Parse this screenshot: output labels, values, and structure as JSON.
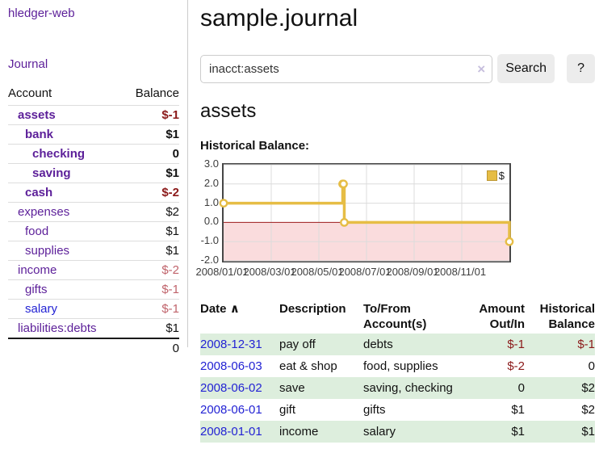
{
  "app": {
    "title": "hledger-web"
  },
  "colors": {
    "link_purple": "#5c1f99",
    "link_blue": "#2323d4",
    "negative_red": "#8b1919",
    "rose_red": "#c0636b",
    "row_stripe_green": "#ddeedd",
    "chart_line_yellow": "#e6bd45",
    "chart_negative_pink": "#fadcdd",
    "chart_zero_line": "#9c1b1b",
    "button_gray": "#ececec"
  },
  "sidebar": {
    "journal_label": "Journal",
    "accounts_table": {
      "account_header": "Account",
      "balance_header": "Balance",
      "rows": [
        {
          "name": "assets",
          "depth": 1,
          "bold": true,
          "link_color": "purple",
          "balance": "$-1",
          "balance_class": "neg"
        },
        {
          "name": "bank",
          "depth": 2,
          "bold": true,
          "link_color": "purple",
          "balance": "$1",
          "balance_class": "pos"
        },
        {
          "name": "checking",
          "depth": 3,
          "bold": true,
          "link_color": "purple",
          "balance": "0",
          "balance_class": "pos"
        },
        {
          "name": "saving",
          "depth": 3,
          "bold": true,
          "link_color": "purple",
          "balance": "$1",
          "balance_class": "pos"
        },
        {
          "name": "cash",
          "depth": 2,
          "bold": true,
          "link_color": "purple",
          "balance": "$-2",
          "balance_class": "neg"
        },
        {
          "name": "expenses",
          "depth": 1,
          "bold": false,
          "link_color": "purple",
          "balance": "$2",
          "balance_class": "pos"
        },
        {
          "name": "food",
          "depth": 2,
          "bold": false,
          "link_color": "purple",
          "balance": "$1",
          "balance_class": "pos"
        },
        {
          "name": "supplies",
          "depth": 2,
          "bold": false,
          "link_color": "purple",
          "balance": "$1",
          "balance_class": "pos"
        },
        {
          "name": "income",
          "depth": 1,
          "bold": false,
          "link_color": "purple",
          "balance": "$-2",
          "balance_class": "rose"
        },
        {
          "name": "gifts",
          "depth": 2,
          "bold": false,
          "link_color": "purple",
          "balance": "$-1",
          "balance_class": "rose"
        },
        {
          "name": "salary",
          "depth": 2,
          "bold": false,
          "link_color": "blue",
          "balance": "$-1",
          "balance_class": "rose"
        },
        {
          "name": "liabilities:debts",
          "depth": 1,
          "bold": false,
          "link_color": "purple",
          "balance": "$1",
          "balance_class": "pos"
        }
      ],
      "total": "0"
    }
  },
  "main": {
    "title": "sample.journal",
    "search": {
      "value": "inacct:assets",
      "clear_icon": "×",
      "button_label": "Search",
      "help_label": "?"
    },
    "account_heading": "assets",
    "chart_label": "Historical Balance:"
  },
  "chart_data": {
    "type": "line",
    "title": "Historical Balance:",
    "style": "step",
    "series": [
      {
        "name": "$",
        "color": "#e6bd45",
        "points": [
          {
            "date": "2008-01-01",
            "value": 1
          },
          {
            "date": "2008-06-01",
            "value": 2
          },
          {
            "date": "2008-06-02",
            "value": 2
          },
          {
            "date": "2008-06-03",
            "value": 0
          },
          {
            "date": "2008-12-31",
            "value": -1
          }
        ]
      }
    ],
    "x_ticks": [
      "2008/01/01",
      "2008/03/01",
      "2008/05/01",
      "2008/07/01",
      "2008/09/01",
      "2008/11/01"
    ],
    "x_range": [
      "2008-01-01",
      "2009-01-01"
    ],
    "y_ticks": [
      3.0,
      2.0,
      1.0,
      0.0,
      -1.0,
      -2.0
    ],
    "ylim": [
      -2,
      3
    ],
    "grid": true,
    "legend": {
      "label": "$",
      "position": "top-right"
    },
    "negative_region": true
  },
  "register": {
    "headers": {
      "date": "Date",
      "sort_icon": "∧",
      "description": "Description",
      "accounts": "To/From Account(s)",
      "amount": "Amount Out/In",
      "balance": "Historical Balance"
    },
    "rows": [
      {
        "date": "2008-12-31",
        "description": "pay off",
        "accounts": "debts",
        "amount": "$-1",
        "amount_negative": true,
        "balance": "$-1",
        "balance_negative": true,
        "stripe": true
      },
      {
        "date": "2008-06-03",
        "description": "eat & shop",
        "accounts": "food, supplies",
        "amount": "$-2",
        "amount_negative": true,
        "balance": "0",
        "balance_negative": false,
        "stripe": false
      },
      {
        "date": "2008-06-02",
        "description": "save",
        "accounts": "saving, checking",
        "amount": "0",
        "amount_negative": false,
        "balance": "$2",
        "balance_negative": false,
        "stripe": true
      },
      {
        "date": "2008-06-01",
        "description": "gift",
        "accounts": "gifts",
        "amount": "$1",
        "amount_negative": false,
        "balance": "$2",
        "balance_negative": false,
        "stripe": false
      },
      {
        "date": "2008-01-01",
        "description": "income",
        "accounts": "salary",
        "amount": "$1",
        "amount_negative": false,
        "balance": "$1",
        "balance_negative": false,
        "stripe": true
      }
    ]
  }
}
